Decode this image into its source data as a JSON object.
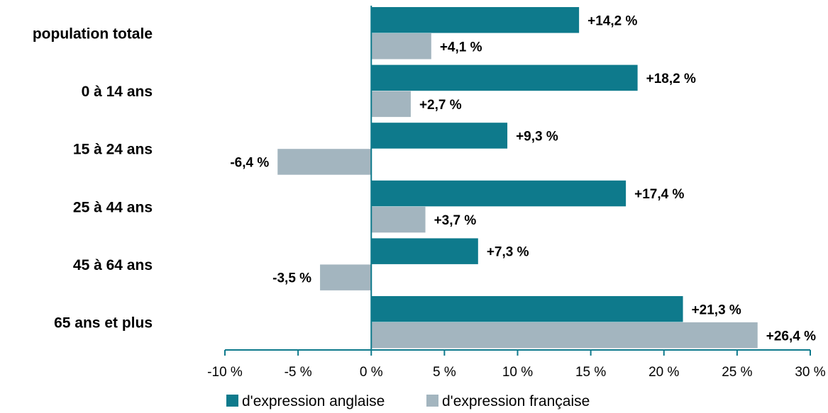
{
  "chart_data": {
    "type": "bar",
    "orientation": "horizontal",
    "categories": [
      "population totale",
      "0 à 14 ans",
      "15 à 24 ans",
      "25 à 44 ans",
      "45 à 64 ans",
      "65 ans et plus"
    ],
    "series": [
      {
        "name": "d'expression anglaise",
        "color": "#0e7a8c",
        "values": [
          14.2,
          18.2,
          9.3,
          17.4,
          7.3,
          21.3
        ],
        "labels": [
          "+14,2 %",
          "+18,2 %",
          "+9,3 %",
          "+17,4 %",
          "+7,3 %",
          "+21,3 %"
        ]
      },
      {
        "name": "d'expression française",
        "color": "#a3b5bf",
        "values": [
          4.1,
          2.7,
          -6.4,
          3.7,
          -3.5,
          26.4
        ],
        "labels": [
          "+4,1 %",
          "+2,7 %",
          "-6,4 %",
          "+3,7 %",
          "-3,5 %",
          "+26,4 %"
        ]
      }
    ],
    "xlim": [
      -10,
      30
    ],
    "x_ticks": [
      -10,
      -5,
      0,
      5,
      10,
      15,
      20,
      25,
      30
    ],
    "x_tick_labels": [
      "-10 %",
      "-5 %",
      "0 %",
      "5 %",
      "10 %",
      "15 %",
      "20 %",
      "25 %",
      "30 %"
    ],
    "title": "",
    "xlabel": "",
    "ylabel": "",
    "grid": false,
    "legend_position": "bottom"
  }
}
